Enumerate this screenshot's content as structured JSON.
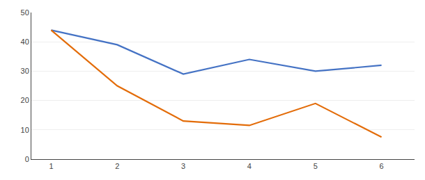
{
  "chart_data": {
    "type": "line",
    "x": [
      1,
      2,
      3,
      4,
      5,
      6
    ],
    "series": [
      {
        "color": "#4472C4",
        "values": [
          44,
          39,
          29,
          34,
          30,
          32
        ]
      },
      {
        "color": "#E36C09",
        "values": [
          44,
          25,
          13,
          11.5,
          19,
          7.5
        ]
      }
    ],
    "xlim": [
      0.7,
      6.5
    ],
    "xticks": [
      1,
      2,
      3,
      4,
      5,
      6
    ],
    "ylim": [
      0,
      50
    ],
    "yticks": [
      0,
      10,
      20,
      30,
      40,
      50
    ],
    "grid": true
  }
}
